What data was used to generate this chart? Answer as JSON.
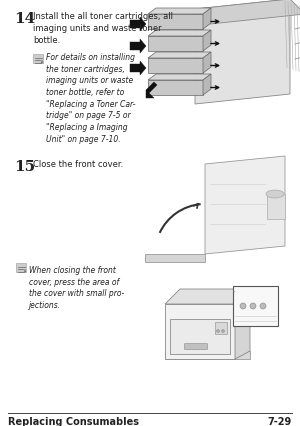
{
  "bg_color": "#ffffff",
  "text_color": "#222222",
  "step14_num": "14",
  "step14_text": "Install the all toner cartridges, all\nimaging units and waste toner\nbottle.",
  "step14_note": "For details on installing\nthe toner cartridges,\nimaging units or waste\ntoner bottle, refer to\n\"Replacing a Toner Car-\ntridge\" on page 7-5 or\n\"Replacing a Imaging\nUnit\" on page 7-10.",
  "step15_num": "15",
  "step15_text": "Close the front cover.",
  "step15_note": "When closing the front\ncover, press the area of\nthe cover with small pro-\njections.",
  "footer_left": "Replacing Consumables",
  "footer_right": "7-29"
}
